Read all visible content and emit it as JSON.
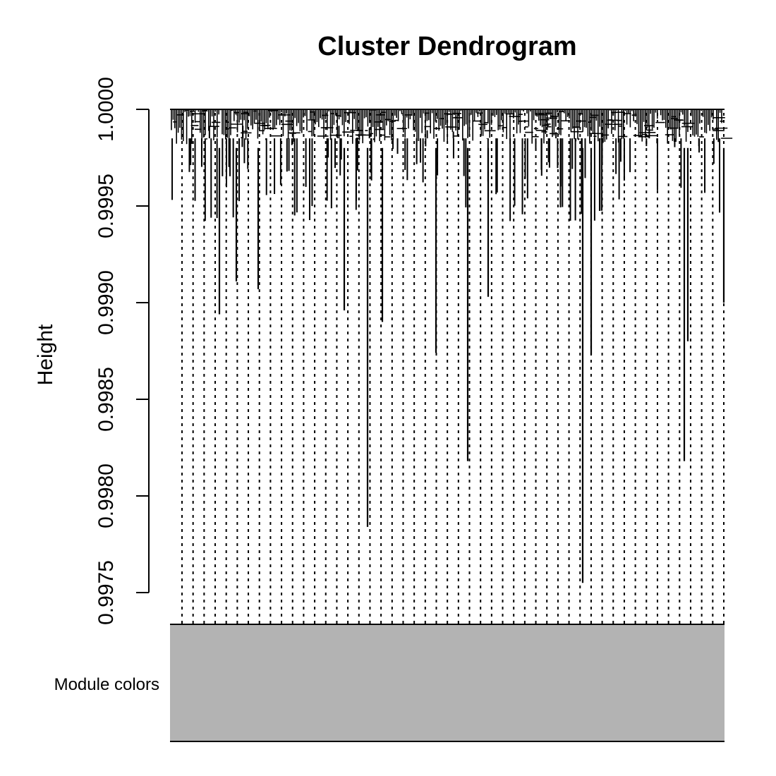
{
  "chart_data": {
    "type": "dendrogram",
    "title": "Cluster Dendrogram",
    "xlabel": "",
    "ylabel": "Height",
    "ylim": [
      0.9975,
      1.0
    ],
    "yticks": [
      "0.9975",
      "0.9980",
      "0.9985",
      "0.9990",
      "0.9995",
      "1.0000"
    ],
    "grid": false,
    "color_row_label": "Module colors",
    "module_color": "#b3b3b3",
    "leaf_guide_count": 50,
    "notable_merge_heights": [
      0.99784,
      0.99818,
      0.99755,
      0.99818,
      0.99874,
      0.99873,
      0.9988,
      0.99894,
      0.9989,
      0.99896,
      0.999,
      0.99907,
      0.99911,
      0.99903
    ]
  }
}
